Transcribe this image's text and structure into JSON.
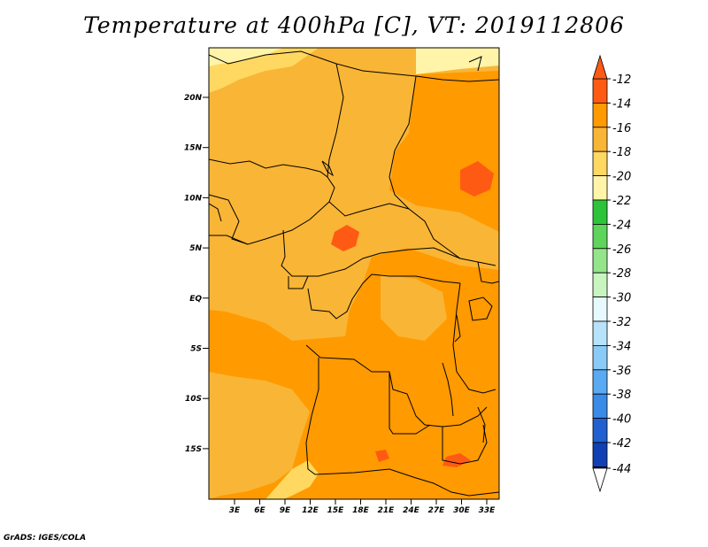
{
  "title": "Temperature at 400hPa [C], VT: 2019112806",
  "credit": "GrADS: IGES/COLA",
  "map": {
    "lat_labels": [
      "20N",
      "15N",
      "10N",
      "5N",
      "EQ",
      "5S",
      "10S",
      "15S"
    ],
    "lon_labels": [
      "3E",
      "6E",
      "9E",
      "12E",
      "15E",
      "18E",
      "21E",
      "24E",
      "27E",
      "30E",
      "33E"
    ]
  },
  "colorbar": {
    "labels": [
      "-12",
      "-14",
      "-16",
      "-18",
      "-20",
      "-22",
      "-24",
      "-26",
      "-28",
      "-30",
      "-32",
      "-34",
      "-36",
      "-38",
      "-40",
      "-42",
      "-44"
    ],
    "colors": [
      "#ff5a14",
      "#ff9a00",
      "#f9b535",
      "#fed860",
      "#fff4a8",
      "#2ec43a",
      "#5ed45c",
      "#94e48c",
      "#c8f4c0",
      "#e6fafe",
      "#b6e2fa",
      "#8acaf6",
      "#5aaaf2",
      "#3a8ae8",
      "#2060d0",
      "#1040b4",
      "#0a1478"
    ],
    "top_triangle_color": "#ff5a14",
    "bottom_triangle_color": "#ffffff"
  }
}
